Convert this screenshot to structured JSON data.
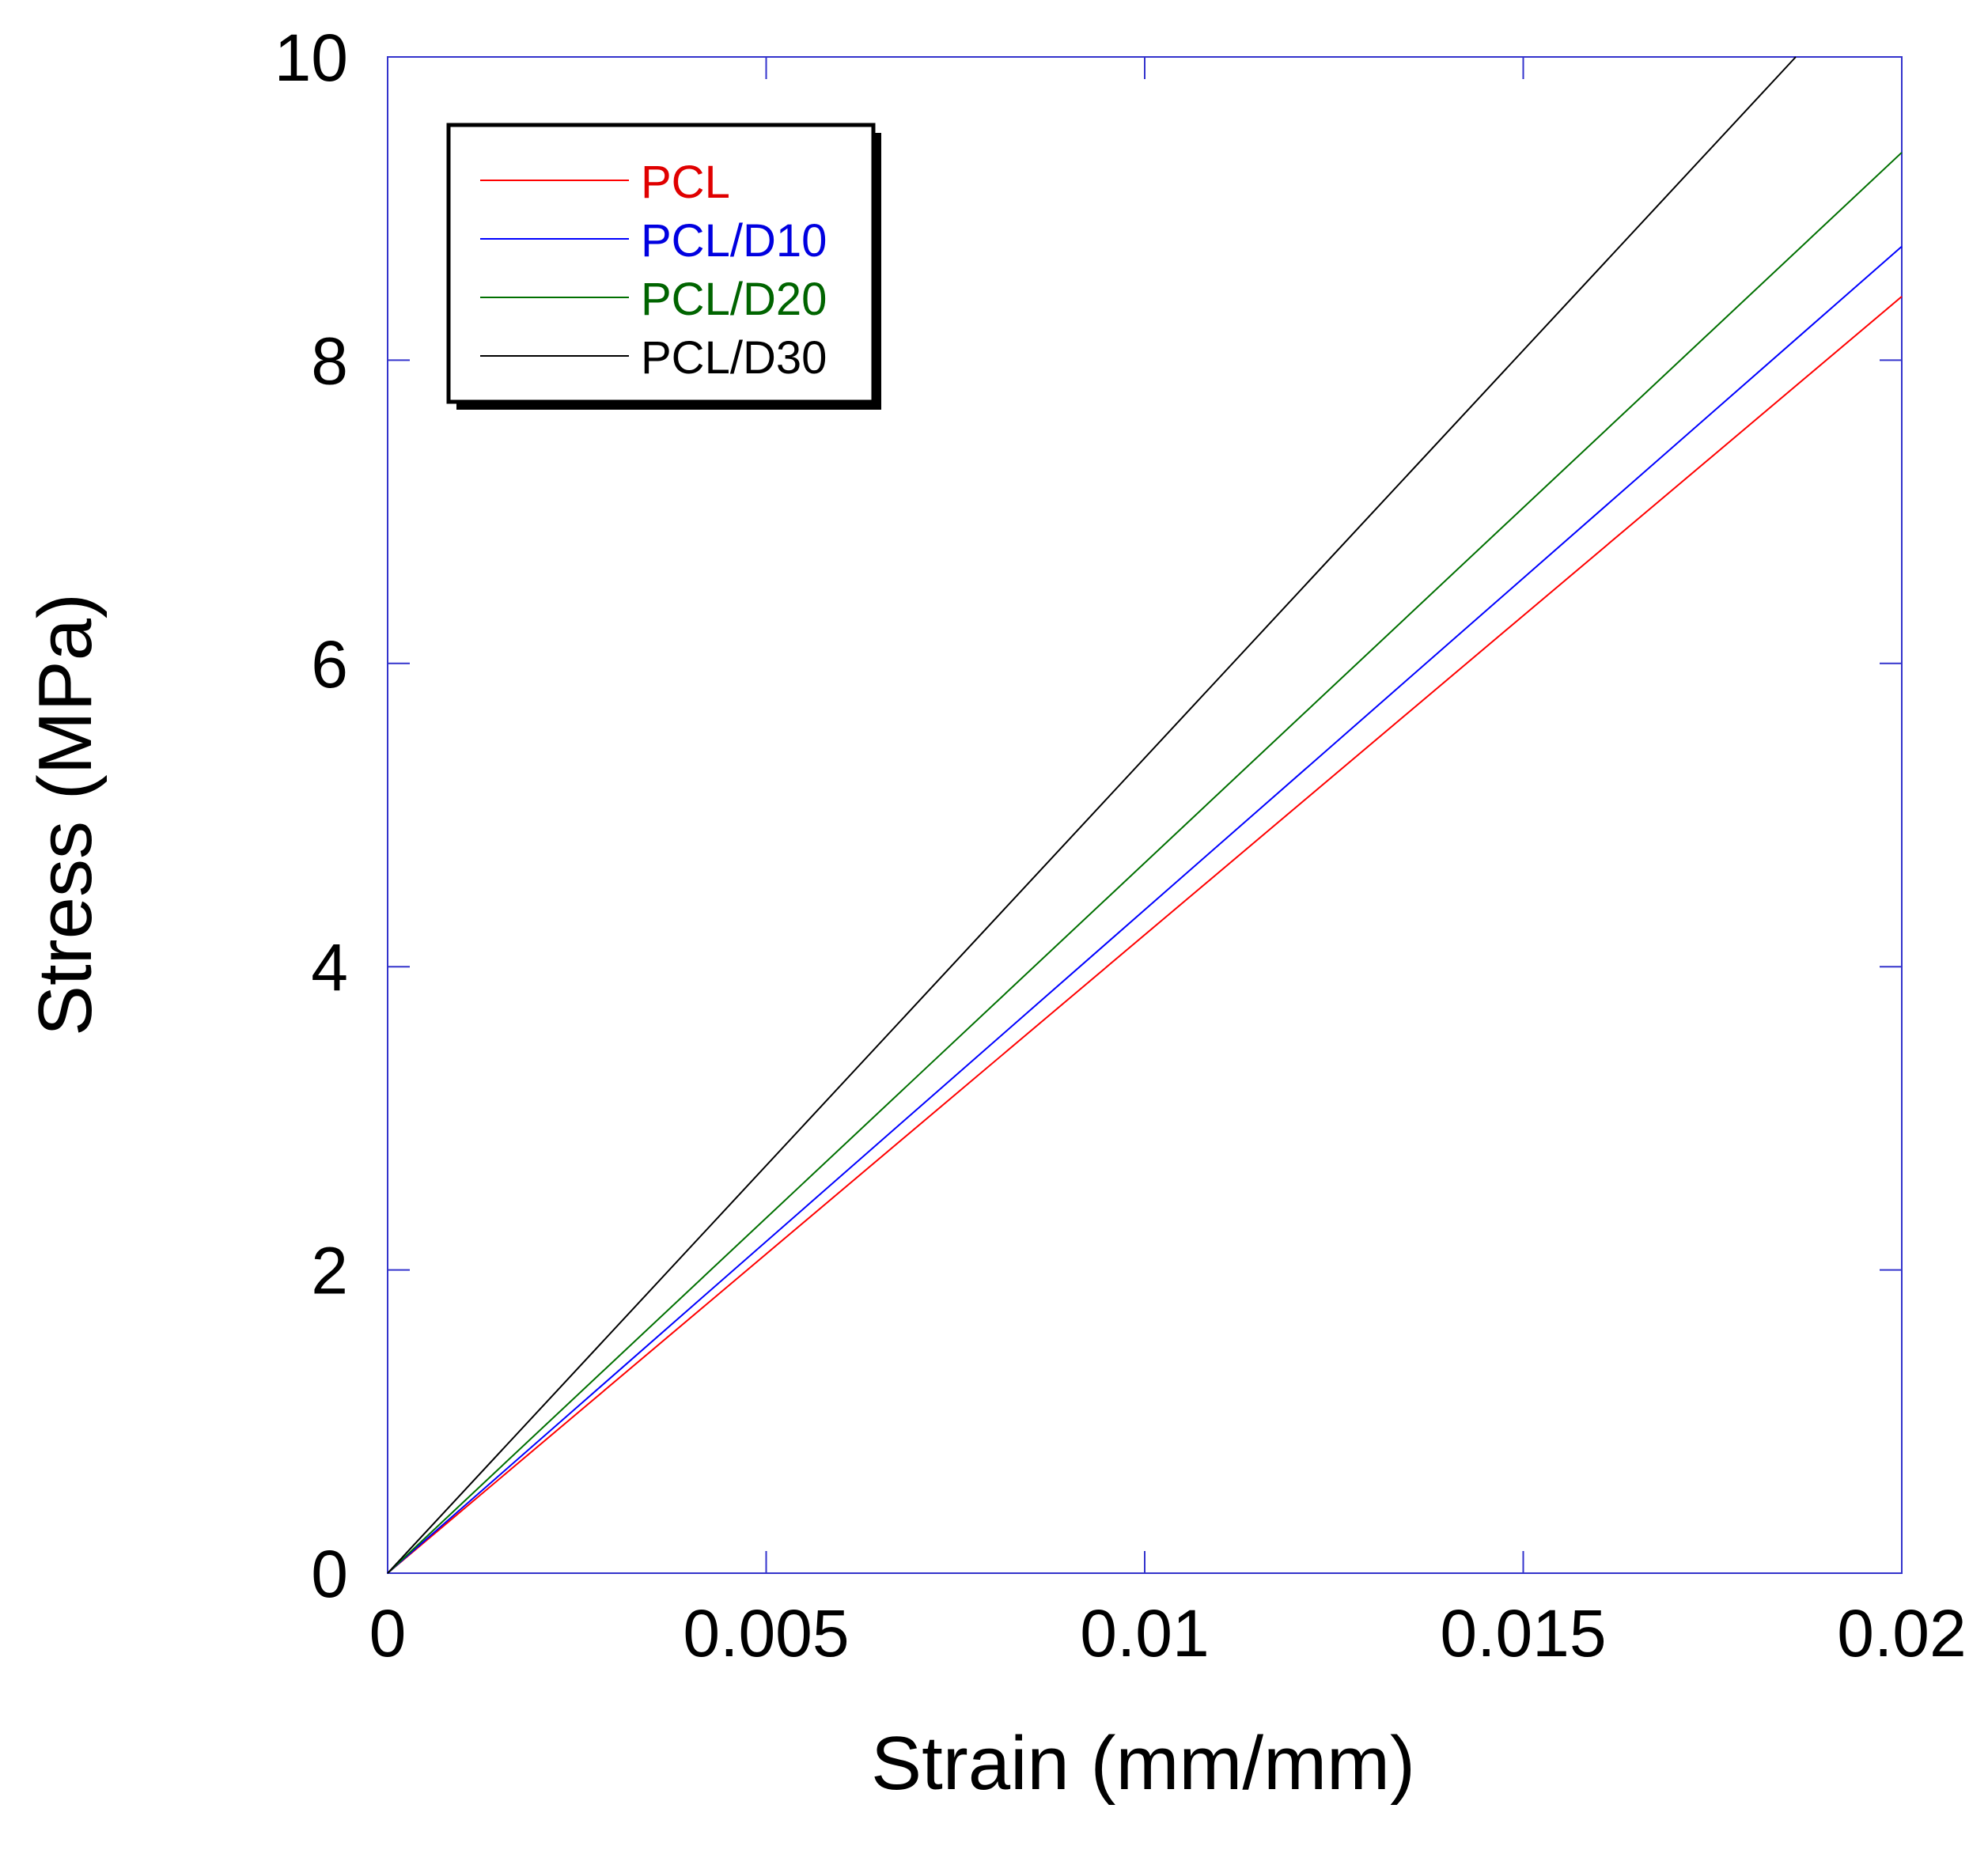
{
  "chart_data": {
    "type": "line",
    "title": "",
    "xlabel": "Strain (mm/mm)",
    "ylabel": "Stress (MPa)",
    "xlim": [
      0,
      0.02
    ],
    "ylim": [
      0,
      10
    ],
    "xticks": [
      0,
      0.005,
      0.01,
      0.015,
      0.02
    ],
    "xtick_labels": [
      "0",
      "0.005",
      "0.01",
      "0.015",
      "0.02"
    ],
    "yticks": [
      0,
      2,
      4,
      6,
      8,
      10
    ],
    "ytick_labels": [
      "0",
      "2",
      "4",
      "6",
      "8",
      "10"
    ],
    "grid": false,
    "legend_position": "top-left",
    "axis_color": "#3333cc",
    "series": [
      {
        "name": "PCL",
        "color": "#ff0000",
        "label_color": "#e00000",
        "x": [
          0,
          0.02
        ],
        "y": [
          0,
          8.42
        ]
      },
      {
        "name": "PCL/D10",
        "color": "#0000ff",
        "label_color": "#0000e0",
        "x": [
          0,
          0.02
        ],
        "y": [
          0,
          8.75
        ]
      },
      {
        "name": "PCL/D20",
        "color": "#007000",
        "label_color": "#006400",
        "x": [
          0,
          0.02
        ],
        "y": [
          0,
          9.37
        ]
      },
      {
        "name": "PCL/D30",
        "color": "#000000",
        "label_color": "#000000",
        "x": [
          0,
          0.0186
        ],
        "y": [
          0,
          10.0
        ]
      }
    ]
  }
}
